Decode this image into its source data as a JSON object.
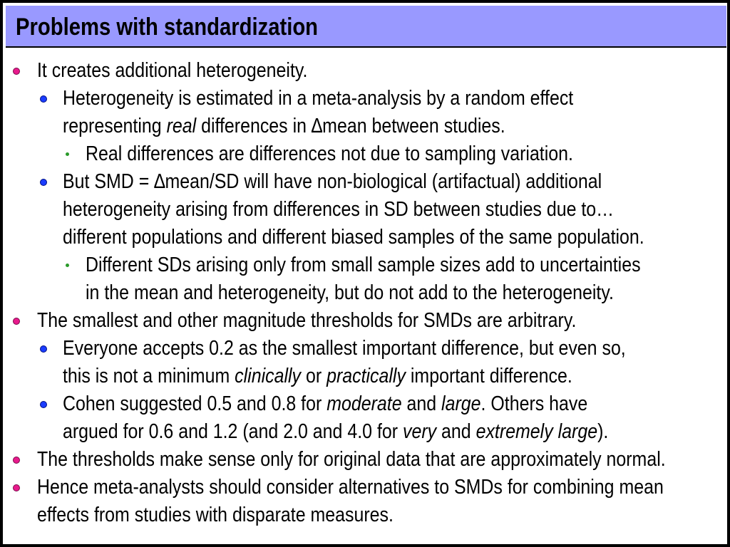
{
  "slide": {
    "title": "Problems with standardization",
    "items": [
      {
        "level": 1,
        "lines": [
          [
            "It creates additional heterogeneity."
          ]
        ]
      },
      {
        "level": 2,
        "lines": [
          [
            "Heterogeneity is estimated in a meta-analysis by a random effect"
          ],
          [
            "representing ",
            {
              "i": "real"
            },
            " differences in ∆mean between studies."
          ]
        ]
      },
      {
        "level": 3,
        "lines": [
          [
            "Real differences are differences not due to sampling variation."
          ]
        ]
      },
      {
        "level": 2,
        "lines": [
          [
            "But SMD = ∆mean/SD will have non-biological (artifactual) additional"
          ],
          [
            "heterogeneity arising from differences in SD between studies due to…"
          ],
          [
            "different populations and different biased samples of the same population."
          ]
        ]
      },
      {
        "level": 3,
        "lines": [
          [
            "Different SDs arising only from small sample sizes add to uncertainties"
          ],
          [
            "in the mean and heterogeneity, but do not add to the heterogeneity."
          ]
        ]
      },
      {
        "level": 1,
        "lines": [
          [
            "The smallest and other magnitude thresholds for SMDs are arbitrary."
          ]
        ]
      },
      {
        "level": 2,
        "lines": [
          [
            "Everyone accepts 0.2 as the smallest important difference, but even so,"
          ],
          [
            "this is not a minimum ",
            {
              "i": "clinically"
            },
            " or ",
            {
              "i": "practically"
            },
            " important difference."
          ]
        ]
      },
      {
        "level": 2,
        "lines": [
          [
            "Cohen suggested 0.5 and 0.8 for ",
            {
              "i": "moderate"
            },
            " and ",
            {
              "i": "large"
            },
            ". Others have"
          ],
          [
            "argued for 0.6 and 1.2 (and 2.0 and 4.0 for ",
            {
              "i": "very"
            },
            " and ",
            {
              "i": "extremely large"
            },
            ")."
          ]
        ]
      },
      {
        "level": 1,
        "lines": [
          [
            "The thresholds make sense only for original data that are approximately normal."
          ]
        ]
      },
      {
        "level": 1,
        "lines": [
          [
            "Hence meta-analysts should consider alternatives to SMDs for combining mean"
          ],
          [
            "effects from studies with disparate measures."
          ]
        ]
      }
    ]
  },
  "colors": {
    "title_bar": "#9999ff",
    "bullet_level1": "#e81a8c",
    "bullet_level2": "#1a3cff",
    "bullet_level3": "#2a9a2a"
  }
}
